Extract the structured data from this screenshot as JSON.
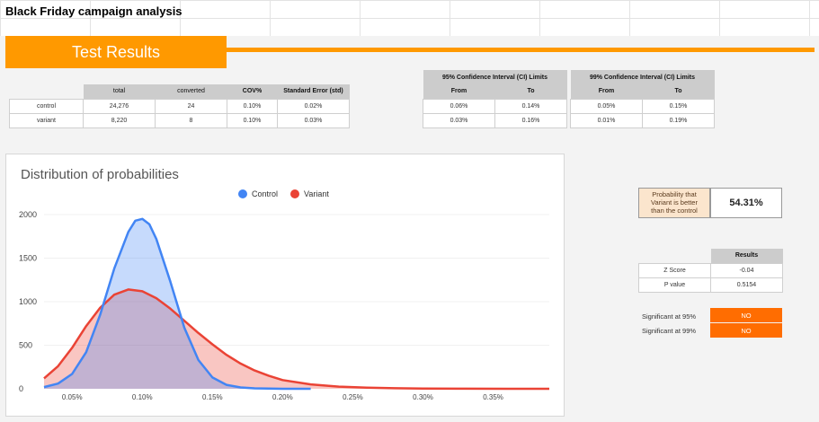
{
  "sheet_title": "Black Friday campaign analysis",
  "banner": "Test Results",
  "summary_table": {
    "headers": [
      "",
      "total",
      "converted",
      "COV%",
      "Standard Error (std)"
    ],
    "rows": [
      {
        "label": "control",
        "total": "24,276",
        "converted": "24",
        "cov": "0.10%",
        "std": "0.02%"
      },
      {
        "label": "variant",
        "total": "8,220",
        "converted": "8",
        "cov": "0.10%",
        "std": "0.03%"
      }
    ]
  },
  "ci_table": {
    "ci95_title": "95% Confidence Interval (CI) Limits",
    "ci99_title": "99% Confidence Interval (CI) Limits",
    "subheaders": [
      "From",
      "To",
      "From",
      "To"
    ],
    "rows": [
      [
        "0.06%",
        "0.14%",
        "0.05%",
        "0.15%"
      ],
      [
        "0.03%",
        "0.16%",
        "0.01%",
        "0.19%"
      ]
    ]
  },
  "probability": {
    "label": "Probability that Variant is better than the control",
    "value": "54.31%"
  },
  "results": {
    "title": "Results",
    "rows": [
      {
        "label": "Z Score",
        "value": "-0.04"
      },
      {
        "label": "P value",
        "value": "0.5154"
      }
    ]
  },
  "significance": [
    {
      "label": "Significant at 95%",
      "value": "NO"
    },
    {
      "label": "Significant at 99%",
      "value": "NO"
    }
  ],
  "colors": {
    "accent": "#ff9900",
    "flag": "#ff6d01",
    "control": "#4285f4",
    "variant": "#ea4335"
  },
  "chart_data": {
    "type": "area",
    "title": "Distribution of probabilities",
    "xlim": [
      0.0003,
      0.0039
    ],
    "ylim": [
      0,
      2000
    ],
    "x_ticks": [
      "0.05%",
      "0.10%",
      "0.15%",
      "0.20%",
      "0.25%",
      "0.30%",
      "0.35%"
    ],
    "x_tick_values": [
      0.0005,
      0.001,
      0.0015,
      0.002,
      0.0025,
      0.003,
      0.0035
    ],
    "y_ticks": [
      0,
      500,
      1000,
      1500,
      2000
    ],
    "legend_position": "top",
    "series": [
      {
        "name": "Control",
        "color": "#4285f4",
        "x": [
          0.0003,
          0.0004,
          0.0005,
          0.0006,
          0.0007,
          0.0008,
          0.0009,
          0.00095,
          0.001,
          0.00105,
          0.0011,
          0.0012,
          0.0013,
          0.0014,
          0.0015,
          0.0016,
          0.0017,
          0.0018,
          0.0019,
          0.002,
          0.0021,
          0.0022
        ],
        "y": [
          20,
          60,
          170,
          420,
          850,
          1380,
          1800,
          1930,
          1950,
          1890,
          1720,
          1230,
          700,
          330,
          130,
          45,
          15,
          5,
          2,
          0,
          0,
          0
        ]
      },
      {
        "name": "Variant",
        "color": "#ea4335",
        "x": [
          0.0003,
          0.0004,
          0.0005,
          0.0006,
          0.0007,
          0.0008,
          0.0009,
          0.001,
          0.0011,
          0.0012,
          0.0013,
          0.0014,
          0.0015,
          0.0016,
          0.0017,
          0.0018,
          0.0019,
          0.002,
          0.0022,
          0.0024,
          0.0026,
          0.0028,
          0.003,
          0.0033,
          0.0036,
          0.0039
        ],
        "y": [
          120,
          260,
          470,
          720,
          930,
          1080,
          1140,
          1120,
          1040,
          920,
          780,
          640,
          510,
          390,
          290,
          210,
          150,
          100,
          50,
          25,
          12,
          6,
          3,
          1,
          0,
          0
        ]
      }
    ]
  }
}
